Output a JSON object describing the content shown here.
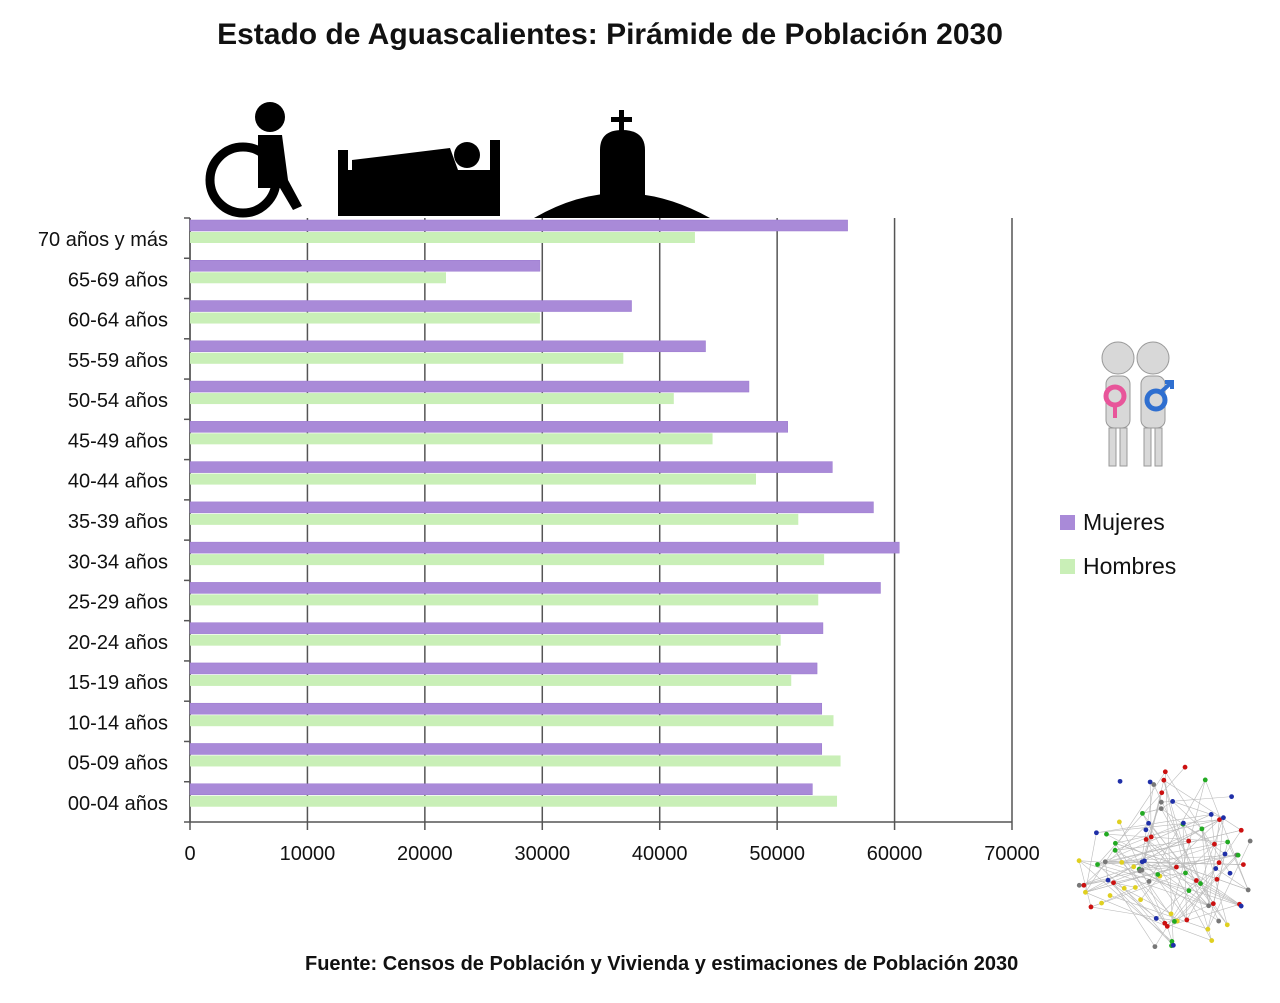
{
  "chart_data": {
    "type": "bar",
    "title": "Estado de Aguascalientes: Pirámide de Población 2030",
    "categories": [
      "70 años y más",
      "65-69 años",
      "60-64 años",
      "55-59 años",
      "50-54 años",
      "45-49 años",
      "40-44 años",
      "35-39 años",
      "30-34 años",
      "25-29 años",
      "20-24 años",
      "15-19 años",
      "10-14 años",
      "05-09 años",
      "00-04 años"
    ],
    "series": [
      {
        "name": "Mujeres",
        "color": "#a98ad8",
        "values": [
          56000,
          29800,
          37600,
          43900,
          47600,
          50900,
          54700,
          58200,
          60400,
          58800,
          53900,
          53400,
          53800,
          53800,
          53000
        ]
      },
      {
        "name": "Hombres",
        "color": "#c9efb7",
        "values": [
          43000,
          21800,
          29800,
          36900,
          41200,
          44500,
          48200,
          51800,
          54000,
          53500,
          50300,
          51200,
          54800,
          55400,
          55100
        ]
      }
    ],
    "xlim": [
      0,
      70000
    ],
    "xticks": [
      0,
      10000,
      20000,
      30000,
      40000,
      50000,
      60000,
      70000
    ],
    "orientation": "horizontal",
    "legend_position": "right",
    "grid": true
  },
  "legend": [
    {
      "label": "Mujeres",
      "color": "#a98ad8"
    },
    {
      "label": "Hombres",
      "color": "#c9efb7"
    }
  ],
  "source_note": "Fuente: Censos de Población y Vivienda y estimaciones de Población 2030"
}
